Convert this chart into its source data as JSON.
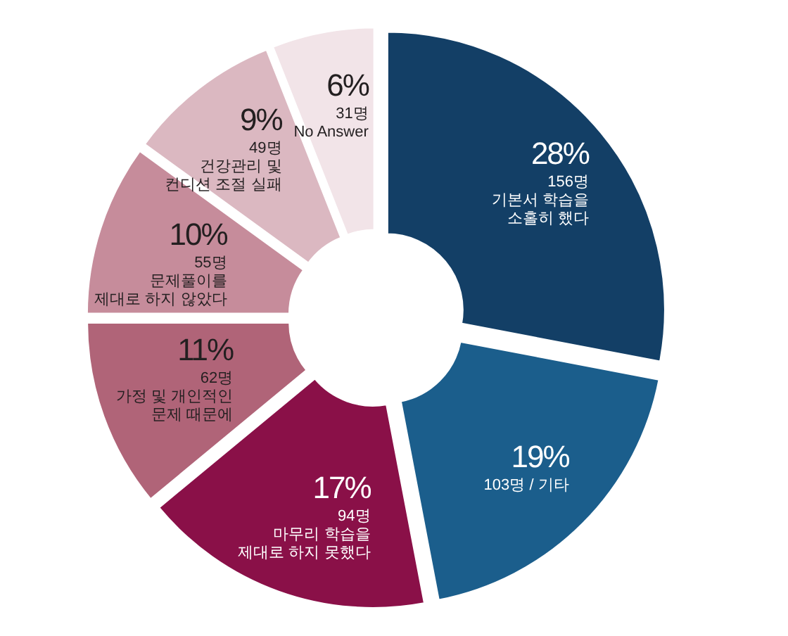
{
  "chart_data": {
    "type": "donut",
    "categories": [
      "156명\n기본서 학습을\n소홀히 했다",
      "103명 / 기타",
      "94명\n마무리 학습을\n제대로 하지 못했다",
      "62명\n가정 및 개인적인\n문제 때문에",
      "55명\n문제풀이를\n제대로 하지 않았다",
      "49명\n건강관리 및\n컨디션 조절 실패",
      "31명\nNo Answer"
    ],
    "values": [
      28,
      19,
      17,
      11,
      10,
      9,
      6
    ],
    "value_labels": [
      "28%",
      "19%",
      "17%",
      "11%",
      "10%",
      "9%",
      "6%"
    ],
    "colors": [
      "#133f66",
      "#1b5e8c",
      "#8a1048",
      "#b06478",
      "#c68c9b",
      "#dbb8c1",
      "#f2e4e8"
    ]
  }
}
